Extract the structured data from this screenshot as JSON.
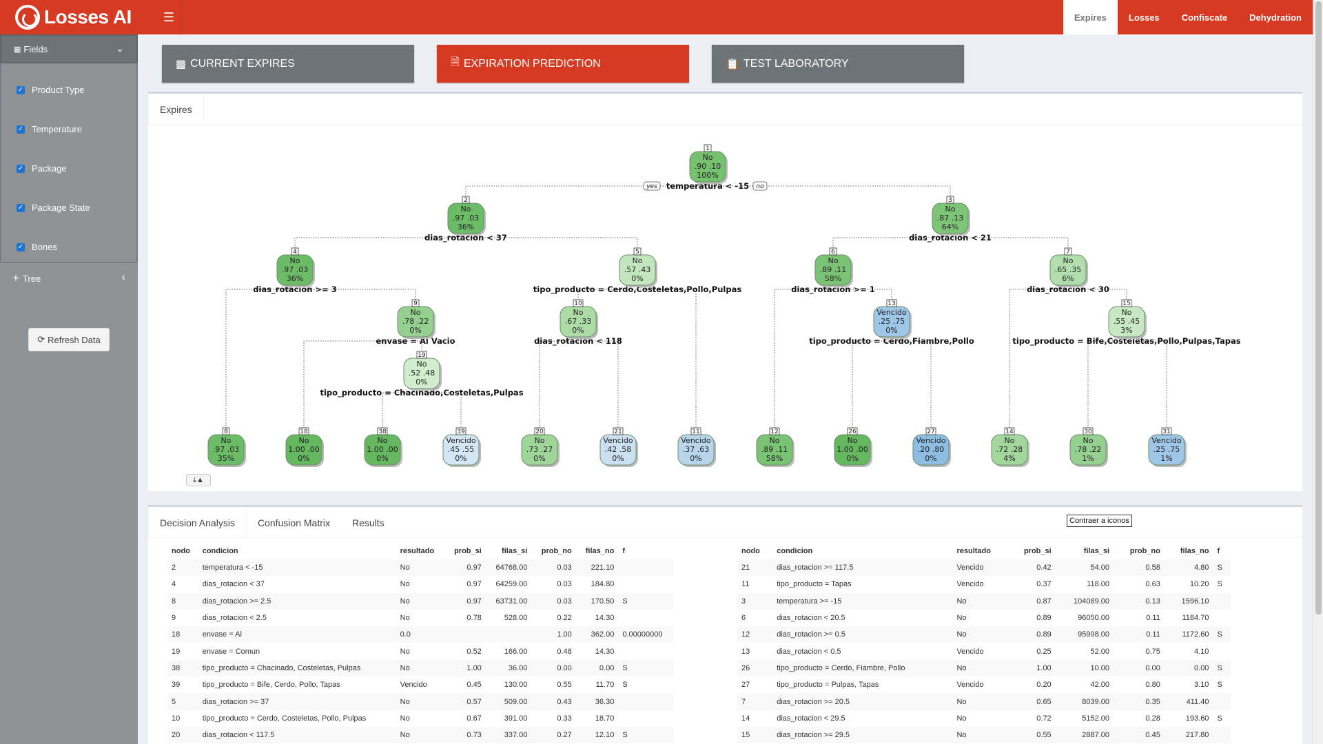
{
  "app": {
    "title": "Losses AI"
  },
  "topnav": [
    {
      "label": "Expires",
      "active": true
    },
    {
      "label": "Losses",
      "active": false
    },
    {
      "label": "Confiscate",
      "active": false
    },
    {
      "label": "Dehydration",
      "active": false
    }
  ],
  "sidebar": {
    "fields_label": "Fields",
    "fields": [
      "Product Type",
      "Temperature",
      "Package",
      "Package State",
      "Bones"
    ],
    "tree_label": "Tree",
    "refresh_label": "Refresh Data"
  },
  "actions": [
    {
      "label": "CURRENT EXPIRES",
      "color": "#6e7377"
    },
    {
      "label": "EXPIRATION PREDICTION",
      "color": "#d63a22"
    },
    {
      "label": "TEST LABORATORY",
      "color": "#6e7377"
    }
  ],
  "tree_tab": "Expires",
  "tree": {
    "nodes": [
      {
        "id": "1",
        "cls": "No",
        "p": ".90  .10",
        "pct": "100%",
        "fill": "#76c06f"
      },
      {
        "id": "2",
        "cls": "No",
        "p": ".97  .03",
        "pct": "36%",
        "fill": "#6cbb66"
      },
      {
        "id": "3",
        "cls": "No",
        "p": ".87  .13",
        "pct": "64%",
        "fill": "#7ec477"
      },
      {
        "id": "4",
        "cls": "No",
        "p": ".97  .03",
        "pct": "36%",
        "fill": "#6cbb66"
      },
      {
        "id": "5",
        "cls": "No",
        "p": ".57  .43",
        "pct": "0%",
        "fill": "#c4e6be"
      },
      {
        "id": "6",
        "cls": "No",
        "p": ".89  .11",
        "pct": "58%",
        "fill": "#7ac274"
      },
      {
        "id": "7",
        "cls": "No",
        "p": ".65  .35",
        "pct": "6%",
        "fill": "#b2dead"
      },
      {
        "id": "9",
        "cls": "No",
        "p": ".78  .22",
        "pct": "0%",
        "fill": "#96d090"
      },
      {
        "id": "10",
        "cls": "No",
        "p": ".67  .33",
        "pct": "0%",
        "fill": "#acdba6"
      },
      {
        "id": "13",
        "cls": "Vencido",
        "p": ".25  .75",
        "pct": "0%",
        "fill": "#9ec6e6"
      },
      {
        "id": "15",
        "cls": "No",
        "p": ".55  .45",
        "pct": "3%",
        "fill": "#c8e8c3"
      },
      {
        "id": "19",
        "cls": "No",
        "p": ".52  .48",
        "pct": "0%",
        "fill": "#d2ecce"
      },
      {
        "id": "8",
        "cls": "No",
        "p": ".97  .03",
        "pct": "35%",
        "fill": "#6cbb66"
      },
      {
        "id": "18",
        "cls": "No",
        "p": "1.00  .00",
        "pct": "0%",
        "fill": "#66b860"
      },
      {
        "id": "38",
        "cls": "No",
        "p": "1.00  .00",
        "pct": "0%",
        "fill": "#66b860"
      },
      {
        "id": "39",
        "cls": "Vencido",
        "p": ".45  .55",
        "pct": "0%",
        "fill": "#d4e6f4"
      },
      {
        "id": "20",
        "cls": "No",
        "p": ".73  .27",
        "pct": "0%",
        "fill": "#a0d59a"
      },
      {
        "id": "21",
        "cls": "Vencido",
        "p": ".42  .58",
        "pct": "0%",
        "fill": "#cbe0f1"
      },
      {
        "id": "11",
        "cls": "Vencido",
        "p": ".37  .63",
        "pct": "0%",
        "fill": "#b8d5ec"
      },
      {
        "id": "12",
        "cls": "No",
        "p": ".89  .11",
        "pct": "58%",
        "fill": "#7ac274"
      },
      {
        "id": "26",
        "cls": "No",
        "p": "1.00  .00",
        "pct": "0%",
        "fill": "#66b860"
      },
      {
        "id": "27",
        "cls": "Vencido",
        "p": ".20  .80",
        "pct": "0%",
        "fill": "#8dbde2"
      },
      {
        "id": "14",
        "cls": "No",
        "p": ".72  .28",
        "pct": "4%",
        "fill": "#a2d69c"
      },
      {
        "id": "30",
        "cls": "No",
        "p": ".78  .22",
        "pct": "1%",
        "fill": "#96d090"
      },
      {
        "id": "31",
        "cls": "Vencido",
        "p": ".25  .75",
        "pct": "1%",
        "fill": "#9ec6e6"
      }
    ],
    "splits": [
      "temperatura < -15",
      "dias_rotacion < 37",
      "dias_rotacion < 21",
      "dias_rotacion >= 3",
      "tipo_producto = Cerdo,Costeletas,Pollo,Pulpas",
      "dias_rotacion >= 1",
      "dias_rotacion < 30",
      "envase = Al Vacio",
      "dias_rotacion < 118",
      "tipo_producto = Cerdo,Fiambre,Pollo",
      "tipo_producto = Bife,Costeletas,Pollo,Pulpas,Tapas",
      "tipo_producto = Chacinado,Costeletas,Pulpas"
    ],
    "yes": "yes",
    "no": "no"
  },
  "bottom_tabs": [
    "Decision Analysis",
    "Confusion Matrix",
    "Results"
  ],
  "tooltip": "Contraer a iconos",
  "table_headers": [
    "nodo",
    "condicion",
    "resultado",
    "prob_si",
    "filas_si",
    "prob_no",
    "filas_no",
    "f"
  ],
  "table_left": [
    [
      "2",
      "temperatura < -15",
      "No",
      "0.97",
      "64768.00",
      "0.03",
      "221.10",
      ""
    ],
    [
      "4",
      "dias_rotacion < 37",
      "No",
      "0.97",
      "64259.00",
      "0.03",
      "184.80",
      ""
    ],
    [
      "8",
      "dias_rotacion >= 2.5",
      "No",
      "0.97",
      "63731.00",
      "0.03",
      "170.50",
      "S"
    ],
    [
      "9",
      "dias_rotacion < 2.5",
      "No",
      "0.78",
      "528.00",
      "0.22",
      "14.30",
      ""
    ],
    [
      "18",
      "envase = Al",
      "0.0",
      "",
      "",
      "1.00",
      "362.00",
      "0.00000000"
    ],
    [
      "19",
      "envase = Comun",
      "No",
      "0.52",
      "166.00",
      "0.48",
      "14.30",
      ""
    ],
    [
      "38",
      "tipo_producto = Chacinado, Costeletas, Pulpas",
      "No",
      "1.00",
      "36.00",
      "0.00",
      "0.00",
      "S"
    ],
    [
      "39",
      "tipo_producto = Bife, Cerdo, Pollo, Tapas",
      "Vencido",
      "0.45",
      "130.00",
      "0.55",
      "11.70",
      "S"
    ],
    [
      "5",
      "dias_rotacion >= 37",
      "No",
      "0.57",
      "509.00",
      "0.43",
      "36.30",
      ""
    ],
    [
      "10",
      "tipo_producto = Cerdo, Costeletas, Pollo, Pulpas",
      "No",
      "0.67",
      "391.00",
      "0.33",
      "18.70",
      ""
    ],
    [
      "20",
      "dias_rotacion < 117.5",
      "No",
      "0.73",
      "337.00",
      "0.27",
      "12.10",
      "S"
    ]
  ],
  "table_right": [
    [
      "21",
      "dias_rotacion >= 117.5",
      "Vencido",
      "0.42",
      "54.00",
      "0.58",
      "4.80",
      "S"
    ],
    [
      "11",
      "tipo_producto = Tapas",
      "Vencido",
      "0.37",
      "118.00",
      "0.63",
      "10.20",
      "S"
    ],
    [
      "3",
      "temperatura >= -15",
      "No",
      "0.87",
      "104089.00",
      "0.13",
      "1596.10",
      ""
    ],
    [
      "6",
      "dias_rotacion < 20.5",
      "No",
      "0.89",
      "96050.00",
      "0.11",
      "1184.70",
      ""
    ],
    [
      "12",
      "dias_rotacion >= 0.5",
      "No",
      "0.89",
      "95998.00",
      "0.11",
      "1172.60",
      "S"
    ],
    [
      "13",
      "dias_rotacion < 0.5",
      "Vencido",
      "0.25",
      "52.00",
      "0.75",
      "4.10",
      ""
    ],
    [
      "26",
      "tipo_producto = Cerdo, Fiambre, Pollo",
      "No",
      "1.00",
      "10.00",
      "0.00",
      "0.00",
      "S"
    ],
    [
      "27",
      "tipo_producto = Pulpas, Tapas",
      "Vencido",
      "0.20",
      "42.00",
      "0.80",
      "3.10",
      "S"
    ],
    [
      "7",
      "dias_rotacion >= 20.5",
      "No",
      "0.65",
      "8039.00",
      "0.35",
      "411.40",
      ""
    ],
    [
      "14",
      "dias_rotacion < 29.5",
      "No",
      "0.72",
      "5152.00",
      "0.28",
      "193.60",
      "S"
    ],
    [
      "15",
      "dias_rotacion >= 29.5",
      "No",
      "0.55",
      "2887.00",
      "0.45",
      "217.80",
      ""
    ]
  ]
}
